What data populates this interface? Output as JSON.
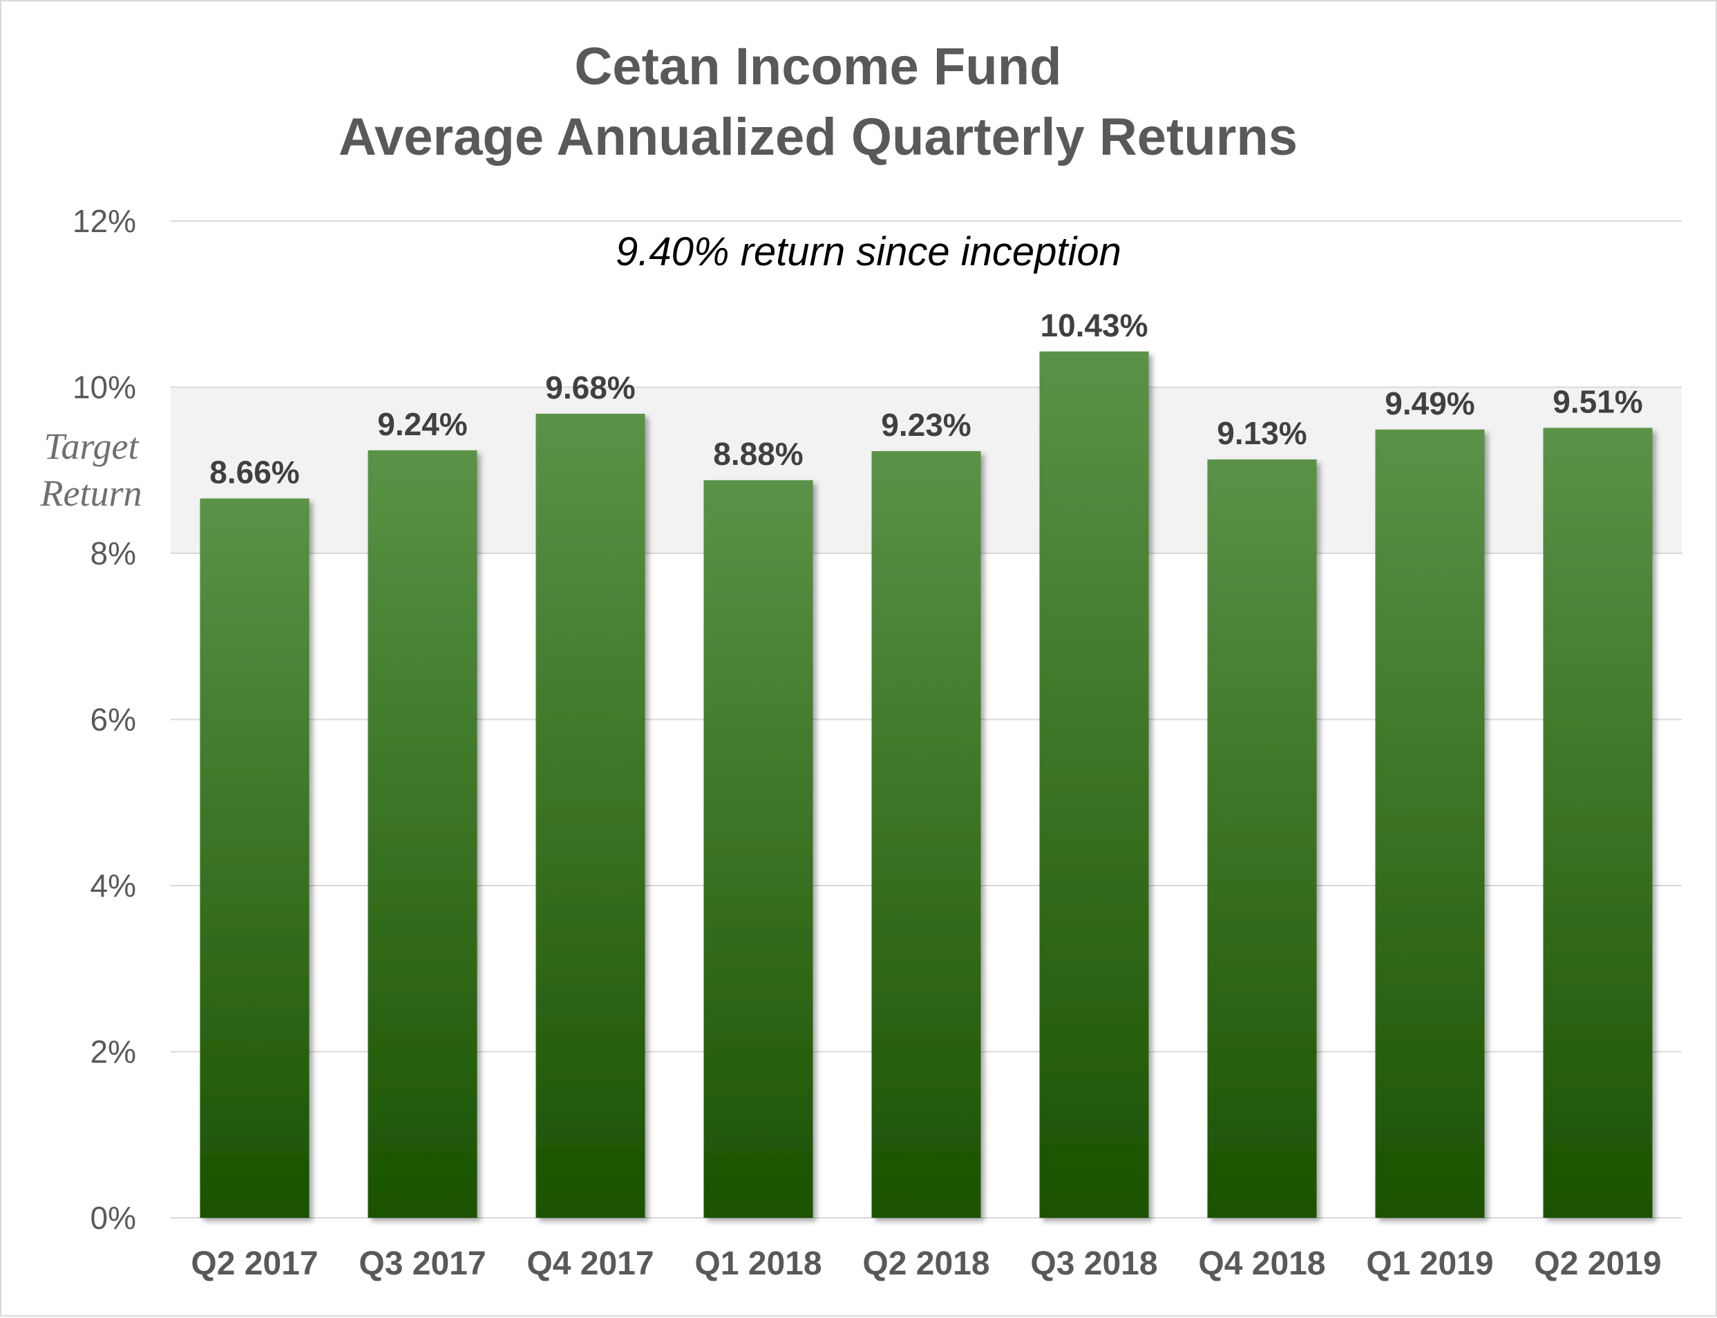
{
  "chart_data": {
    "type": "bar",
    "title": [
      "Cetan Income Fund",
      "Average Annualized Quarterly Returns"
    ],
    "subtitle": "9.40% return since inception",
    "categories": [
      "Q2 2017",
      "Q3 2017",
      "Q4 2017",
      "Q1 2018",
      "Q2 2018",
      "Q3 2018",
      "Q4 2018",
      "Q1 2019",
      "Q2 2019"
    ],
    "values": [
      8.66,
      9.24,
      9.68,
      8.88,
      9.23,
      10.43,
      9.13,
      9.49,
      9.51
    ],
    "value_labels": [
      "8.66%",
      "9.24%",
      "9.68%",
      "8.88%",
      "9.23%",
      "10.43%",
      "9.13%",
      "9.49%",
      "9.51%"
    ],
    "ylim": [
      0,
      12
    ],
    "yticks": [
      0,
      2,
      4,
      6,
      8,
      10,
      12
    ],
    "ytick_labels": [
      "0%",
      "2%",
      "4%",
      "6%",
      "8%",
      "10%",
      "12%"
    ],
    "target_band": {
      "range": [
        8,
        10
      ],
      "label": [
        "Target",
        "Return"
      ]
    },
    "grid": true,
    "legend": "none",
    "colors": {
      "bar_top": "#5a9347",
      "bar_bottom": "#1a5200",
      "band": "#f2f2f2",
      "grid": "#d9d9d9"
    }
  }
}
